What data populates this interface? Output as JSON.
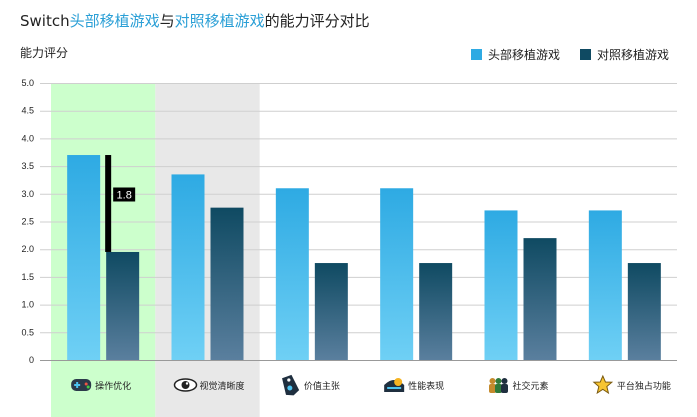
{
  "title": {
    "prefix": "Switch",
    "highlight1": "头部移植游戏",
    "mid": "与",
    "highlight2": "对照移植游戏",
    "suffix": "的能力评分对比"
  },
  "colors": {
    "series1_top": "#2eaae3",
    "series1_bottom": "#6fd0f5",
    "series2_top": "#0f4a62",
    "series2_bottom": "#5a7f9e",
    "highlight_bg": "#ccffcc",
    "hover_bg": "#e8e8e8",
    "grid": "#cfcfcf",
    "title_highlight": "#2a9fd6"
  },
  "chart_data": {
    "type": "bar",
    "ylabel": "能力评分",
    "ylim": [
      0,
      5
    ],
    "yticks": [
      "0",
      "0.5",
      "1.0",
      "1.5",
      "2.0",
      "2.5",
      "3.0",
      "3.5",
      "4.0",
      "4.5",
      "5.0"
    ],
    "categories": [
      "操作优化",
      "视觉清晰度",
      "价值主张",
      "性能表现",
      "社交元素",
      "平台独占功能"
    ],
    "category_icons": [
      "gamepad-icon",
      "eye-icon",
      "price-tag-icon",
      "performance-icon",
      "people-icon",
      "star-icon"
    ],
    "series": [
      {
        "name": "头部移植游戏",
        "values": [
          3.7,
          3.35,
          3.1,
          3.1,
          2.7,
          2.7
        ]
      },
      {
        "name": "对照移植游戏",
        "values": [
          1.95,
          2.75,
          1.75,
          1.75,
          2.2,
          1.75
        ]
      }
    ],
    "annotation": {
      "category_index": 0,
      "text": "1.8"
    },
    "highlight_category": 0,
    "hover_category": 1,
    "grid": true,
    "legend_position": "top-right"
  }
}
